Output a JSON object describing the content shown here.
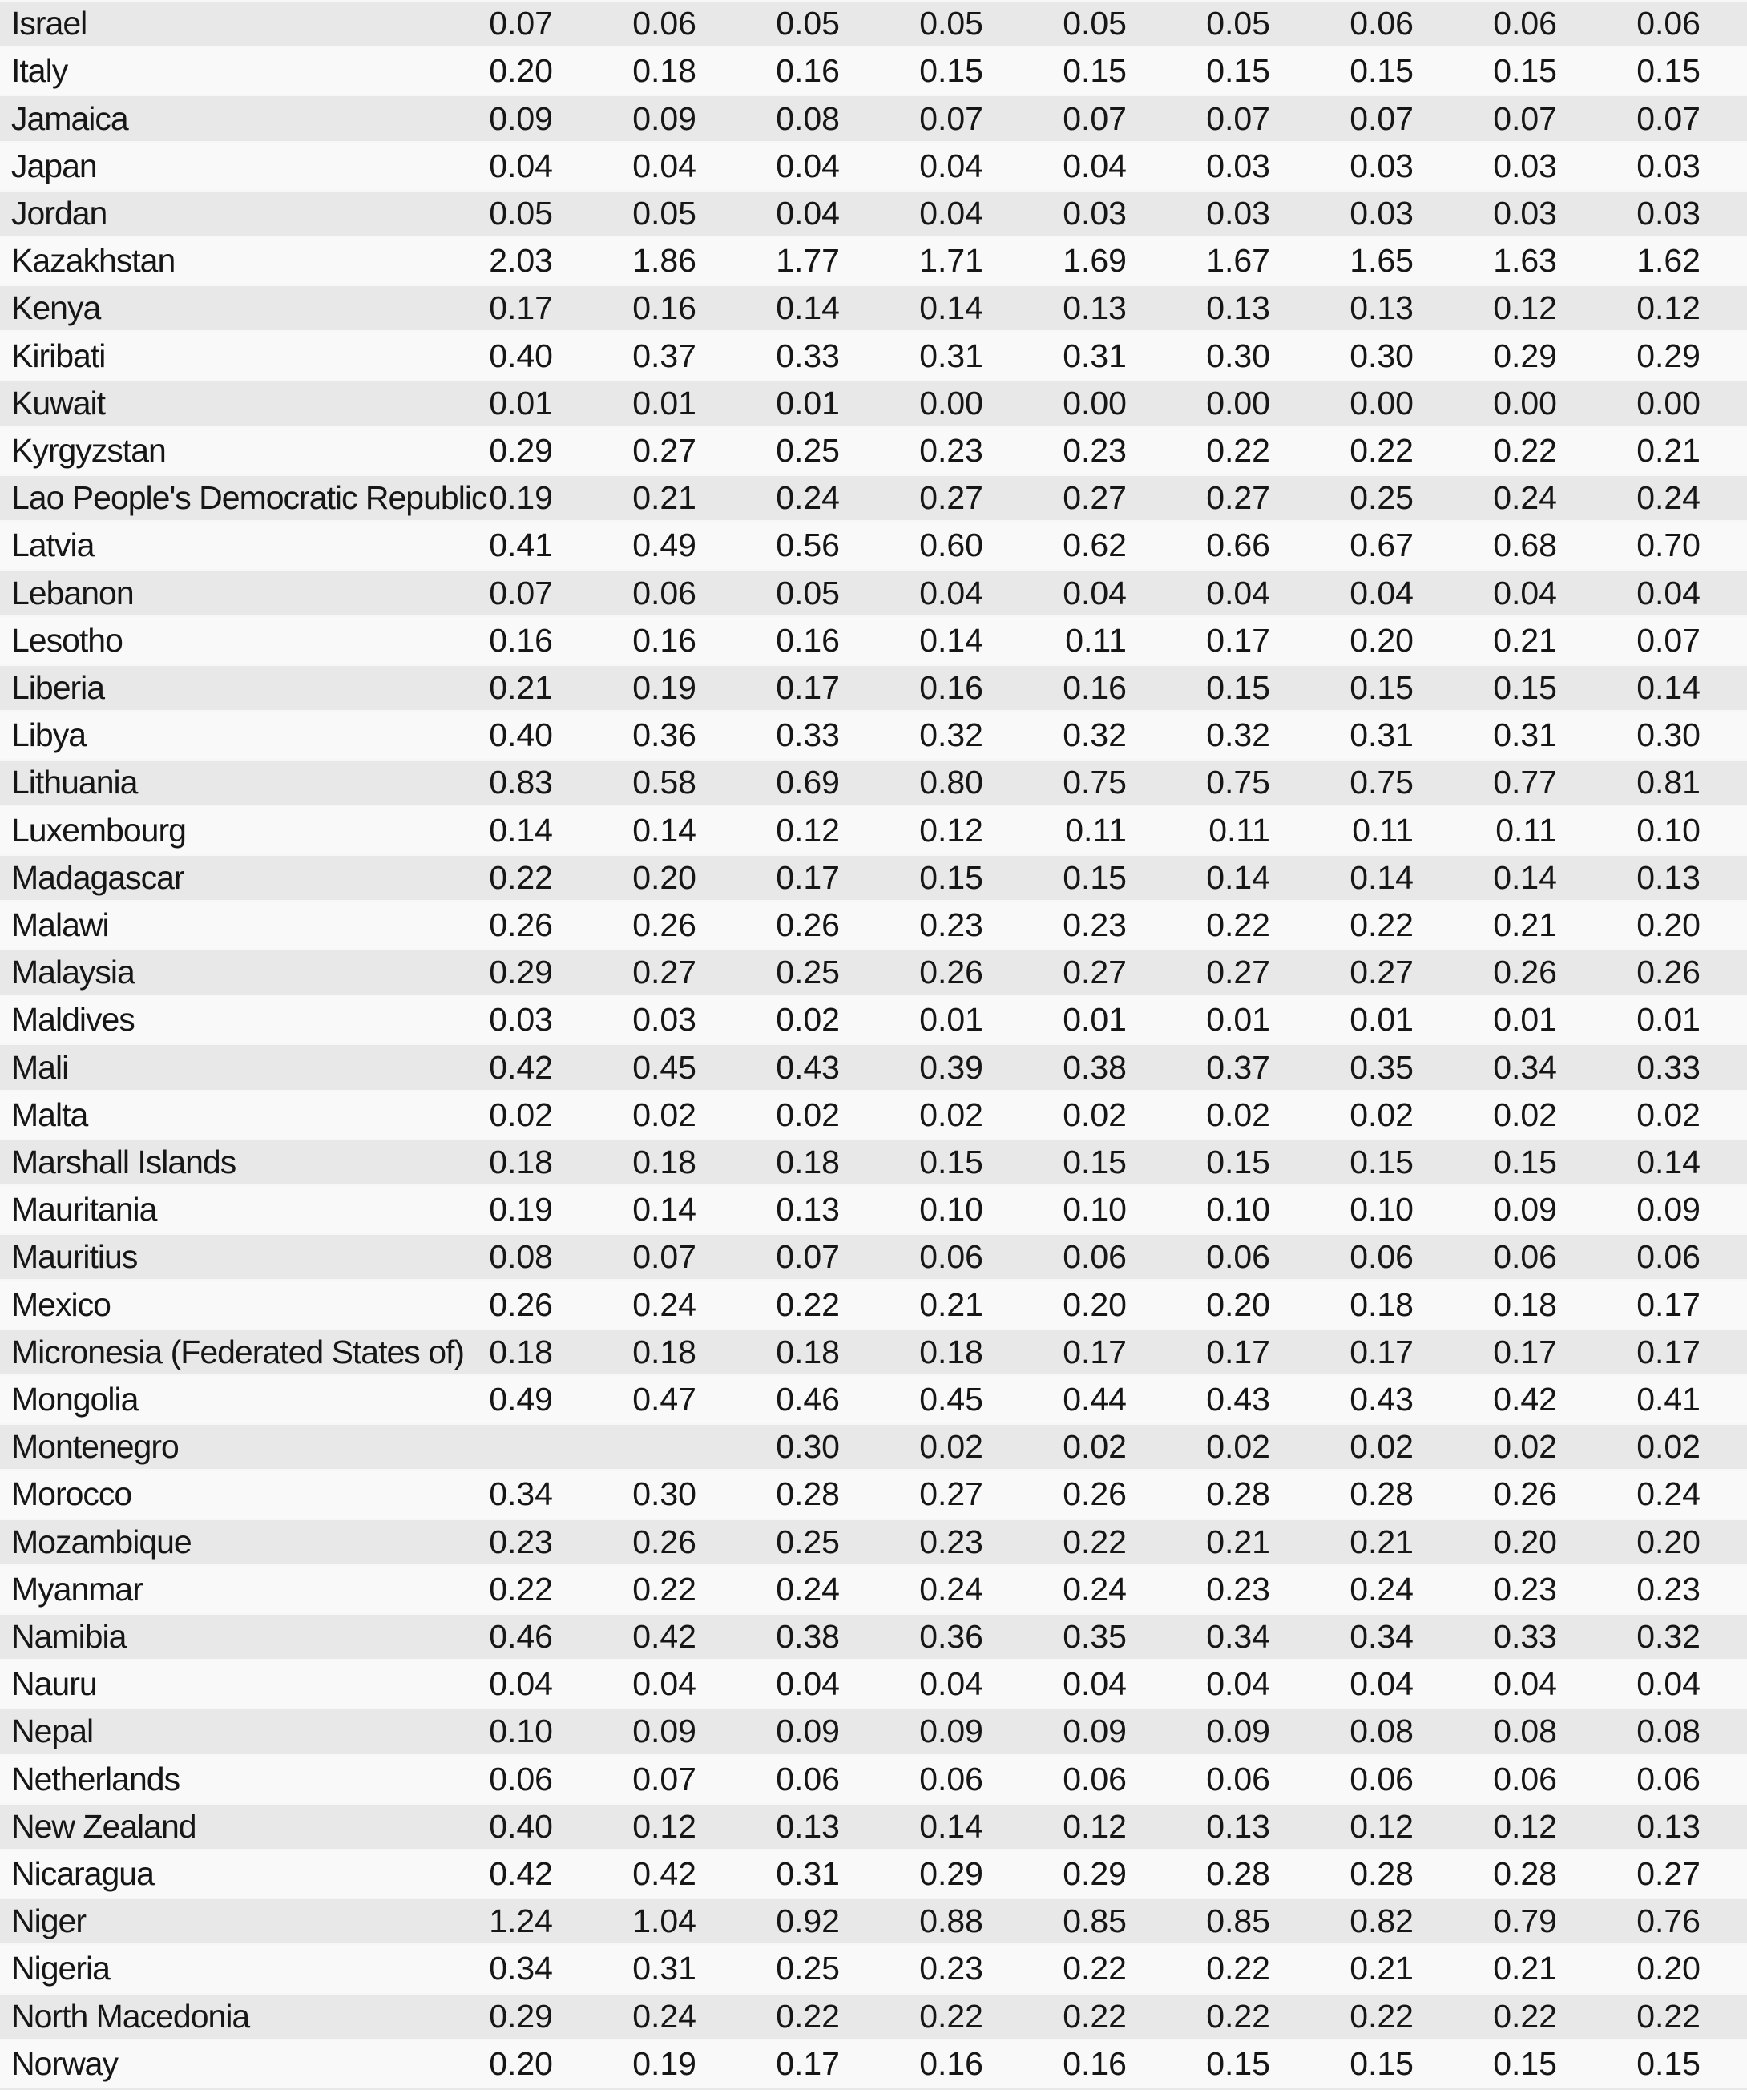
{
  "page": {
    "background_color": "#f9f9f9",
    "stripe_color": "#e8e8e8",
    "text_color": "#161616"
  },
  "table": {
    "num_value_columns": 9,
    "rows": [
      {
        "country": "Israel",
        "values": [
          "0.07",
          "0.06",
          "0.05",
          "0.05",
          "0.05",
          "0.05",
          "0.06",
          "0.06",
          "0.06"
        ]
      },
      {
        "country": "Italy",
        "values": [
          "0.20",
          "0.18",
          "0.16",
          "0.15",
          "0.15",
          "0.15",
          "0.15",
          "0.15",
          "0.15"
        ]
      },
      {
        "country": "Jamaica",
        "values": [
          "0.09",
          "0.09",
          "0.08",
          "0.07",
          "0.07",
          "0.07",
          "0.07",
          "0.07",
          "0.07"
        ]
      },
      {
        "country": "Japan",
        "values": [
          "0.04",
          "0.04",
          "0.04",
          "0.04",
          "0.04",
          "0.03",
          "0.03",
          "0.03",
          "0.03"
        ]
      },
      {
        "country": "Jordan",
        "values": [
          "0.05",
          "0.05",
          "0.04",
          "0.04",
          "0.03",
          "0.03",
          "0.03",
          "0.03",
          "0.03"
        ]
      },
      {
        "country": "Kazakhstan",
        "values": [
          "2.03",
          "1.86",
          "1.77",
          "1.71",
          "1.69",
          "1.67",
          "1.65",
          "1.63",
          "1.62"
        ]
      },
      {
        "country": "Kenya",
        "values": [
          "0.17",
          "0.16",
          "0.14",
          "0.14",
          "0.13",
          "0.13",
          "0.13",
          "0.12",
          "0.12"
        ]
      },
      {
        "country": "Kiribati",
        "values": [
          "0.40",
          "0.37",
          "0.33",
          "0.31",
          "0.31",
          "0.30",
          "0.30",
          "0.29",
          "0.29"
        ]
      },
      {
        "country": "Kuwait",
        "values": [
          "0.01",
          "0.01",
          "0.01",
          "0.00",
          "0.00",
          "0.00",
          "0.00",
          "0.00",
          "0.00"
        ]
      },
      {
        "country": "Kyrgyzstan",
        "values": [
          "0.29",
          "0.27",
          "0.25",
          "0.23",
          "0.23",
          "0.22",
          "0.22",
          "0.22",
          "0.21"
        ]
      },
      {
        "country": "Lao People's Democratic Republic",
        "values": [
          "0.19",
          "0.21",
          "0.24",
          "0.27",
          "0.27",
          "0.27",
          "0.25",
          "0.24",
          "0.24"
        ]
      },
      {
        "country": "Latvia",
        "values": [
          "0.41",
          "0.49",
          "0.56",
          "0.60",
          "0.62",
          "0.66",
          "0.67",
          "0.68",
          "0.70"
        ]
      },
      {
        "country": "Lebanon",
        "values": [
          "0.07",
          "0.06",
          "0.05",
          "0.04",
          "0.04",
          "0.04",
          "0.04",
          "0.04",
          "0.04"
        ]
      },
      {
        "country": "Lesotho",
        "values": [
          "0.16",
          "0.16",
          "0.16",
          "0.14",
          "0.11",
          "0.17",
          "0.20",
          "0.21",
          "0.07"
        ]
      },
      {
        "country": "Liberia",
        "values": [
          "0.21",
          "0.19",
          "0.17",
          "0.16",
          "0.16",
          "0.15",
          "0.15",
          "0.15",
          "0.14"
        ]
      },
      {
        "country": "Libya",
        "values": [
          "0.40",
          "0.36",
          "0.33",
          "0.32",
          "0.32",
          "0.32",
          "0.31",
          "0.31",
          "0.30"
        ]
      },
      {
        "country": "Lithuania",
        "values": [
          "0.83",
          "0.58",
          "0.69",
          "0.80",
          "0.75",
          "0.75",
          "0.75",
          "0.77",
          "0.81"
        ]
      },
      {
        "country": "Luxembourg",
        "values": [
          "0.14",
          "0.14",
          "0.12",
          "0.12",
          "0.11",
          "0.11",
          "0.11",
          "0.11",
          "0.10"
        ]
      },
      {
        "country": "Madagascar",
        "values": [
          "0.22",
          "0.20",
          "0.17",
          "0.15",
          "0.15",
          "0.14",
          "0.14",
          "0.14",
          "0.13"
        ]
      },
      {
        "country": "Malawi",
        "values": [
          "0.26",
          "0.26",
          "0.26",
          "0.23",
          "0.23",
          "0.22",
          "0.22",
          "0.21",
          "0.20"
        ]
      },
      {
        "country": "Malaysia",
        "values": [
          "0.29",
          "0.27",
          "0.25",
          "0.26",
          "0.27",
          "0.27",
          "0.27",
          "0.26",
          "0.26"
        ]
      },
      {
        "country": "Maldives",
        "values": [
          "0.03",
          "0.03",
          "0.02",
          "0.01",
          "0.01",
          "0.01",
          "0.01",
          "0.01",
          "0.01"
        ]
      },
      {
        "country": "Mali",
        "values": [
          "0.42",
          "0.45",
          "0.43",
          "0.39",
          "0.38",
          "0.37",
          "0.35",
          "0.34",
          "0.33"
        ]
      },
      {
        "country": "Malta",
        "values": [
          "0.02",
          "0.02",
          "0.02",
          "0.02",
          "0.02",
          "0.02",
          "0.02",
          "0.02",
          "0.02"
        ]
      },
      {
        "country": "Marshall Islands",
        "values": [
          "0.18",
          "0.18",
          "0.18",
          "0.15",
          "0.15",
          "0.15",
          "0.15",
          "0.15",
          "0.14"
        ]
      },
      {
        "country": "Mauritania",
        "values": [
          "0.19",
          "0.14",
          "0.13",
          "0.10",
          "0.10",
          "0.10",
          "0.10",
          "0.09",
          "0.09"
        ]
      },
      {
        "country": "Mauritius",
        "values": [
          "0.08",
          "0.07",
          "0.07",
          "0.06",
          "0.06",
          "0.06",
          "0.06",
          "0.06",
          "0.06"
        ]
      },
      {
        "country": "Mexico",
        "values": [
          "0.26",
          "0.24",
          "0.22",
          "0.21",
          "0.20",
          "0.20",
          "0.18",
          "0.18",
          "0.17"
        ]
      },
      {
        "country": "Micronesia (Federated States of)",
        "values": [
          "0.18",
          "0.18",
          "0.18",
          "0.18",
          "0.17",
          "0.17",
          "0.17",
          "0.17",
          "0.17"
        ]
      },
      {
        "country": "Mongolia",
        "values": [
          "0.49",
          "0.47",
          "0.46",
          "0.45",
          "0.44",
          "0.43",
          "0.43",
          "0.42",
          "0.41"
        ]
      },
      {
        "country": "Montenegro",
        "values": [
          "",
          "",
          "0.30",
          "0.02",
          "0.02",
          "0.02",
          "0.02",
          "0.02",
          "0.02"
        ]
      },
      {
        "country": "Morocco",
        "values": [
          "0.34",
          "0.30",
          "0.28",
          "0.27",
          "0.26",
          "0.28",
          "0.28",
          "0.26",
          "0.24"
        ]
      },
      {
        "country": "Mozambique",
        "values": [
          "0.23",
          "0.26",
          "0.25",
          "0.23",
          "0.22",
          "0.21",
          "0.21",
          "0.20",
          "0.20"
        ]
      },
      {
        "country": "Myanmar",
        "values": [
          "0.22",
          "0.22",
          "0.24",
          "0.24",
          "0.24",
          "0.23",
          "0.24",
          "0.23",
          "0.23"
        ]
      },
      {
        "country": "Namibia",
        "values": [
          "0.46",
          "0.42",
          "0.38",
          "0.36",
          "0.35",
          "0.34",
          "0.34",
          "0.33",
          "0.32"
        ]
      },
      {
        "country": "Nauru",
        "values": [
          "0.04",
          "0.04",
          "0.04",
          "0.04",
          "0.04",
          "0.04",
          "0.04",
          "0.04",
          "0.04"
        ]
      },
      {
        "country": "Nepal",
        "values": [
          "0.10",
          "0.09",
          "0.09",
          "0.09",
          "0.09",
          "0.09",
          "0.08",
          "0.08",
          "0.08"
        ]
      },
      {
        "country": "Netherlands",
        "values": [
          "0.06",
          "0.07",
          "0.06",
          "0.06",
          "0.06",
          "0.06",
          "0.06",
          "0.06",
          "0.06"
        ]
      },
      {
        "country": "New Zealand",
        "values": [
          "0.40",
          "0.12",
          "0.13",
          "0.14",
          "0.12",
          "0.13",
          "0.12",
          "0.12",
          "0.13"
        ]
      },
      {
        "country": "Nicaragua",
        "values": [
          "0.42",
          "0.42",
          "0.31",
          "0.29",
          "0.29",
          "0.28",
          "0.28",
          "0.28",
          "0.27"
        ]
      },
      {
        "country": "Niger",
        "values": [
          "1.24",
          "1.04",
          "0.92",
          "0.88",
          "0.85",
          "0.85",
          "0.82",
          "0.79",
          "0.76"
        ]
      },
      {
        "country": "Nigeria",
        "values": [
          "0.34",
          "0.31",
          "0.25",
          "0.23",
          "0.22",
          "0.22",
          "0.21",
          "0.21",
          "0.20"
        ]
      },
      {
        "country": "North Macedonia",
        "values": [
          "0.29",
          "0.24",
          "0.22",
          "0.22",
          "0.22",
          "0.22",
          "0.22",
          "0.22",
          "0.22"
        ]
      },
      {
        "country": "Norway",
        "values": [
          "0.20",
          "0.19",
          "0.17",
          "0.16",
          "0.16",
          "0.15",
          "0.15",
          "0.15",
          "0.15"
        ]
      }
    ]
  }
}
